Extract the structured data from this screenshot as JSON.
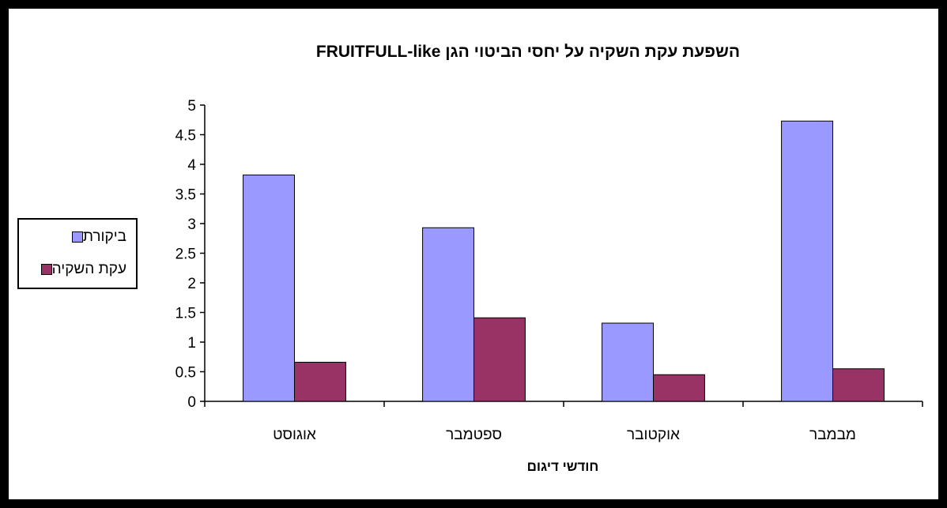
{
  "chart_data": {
    "type": "bar",
    "title": "השפעת עקת השקיה על יחסי הביטוי הגן  FRUITFULL-like",
    "xlabel": "חודשי דיגום",
    "ylabel": "",
    "categories": [
      "אוגוסט",
      "ספטמבר",
      "אוקטובר",
      "מבמבר"
    ],
    "series": [
      {
        "name": "ביקורת",
        "values": [
          3.82,
          2.93,
          1.32,
          4.73
        ],
        "color": "#9999ff"
      },
      {
        "name": "עקת השקיה",
        "values": [
          0.66,
          1.41,
          0.45,
          0.55
        ],
        "color": "#993366"
      }
    ],
    "ylim": [
      0,
      5
    ],
    "yticks": [
      "0",
      "0.5",
      "1",
      "1.5",
      "2",
      "2.5",
      "3",
      "3.5",
      "4",
      "4.5",
      "5"
    ],
    "grid": false,
    "legend_position": "left"
  }
}
